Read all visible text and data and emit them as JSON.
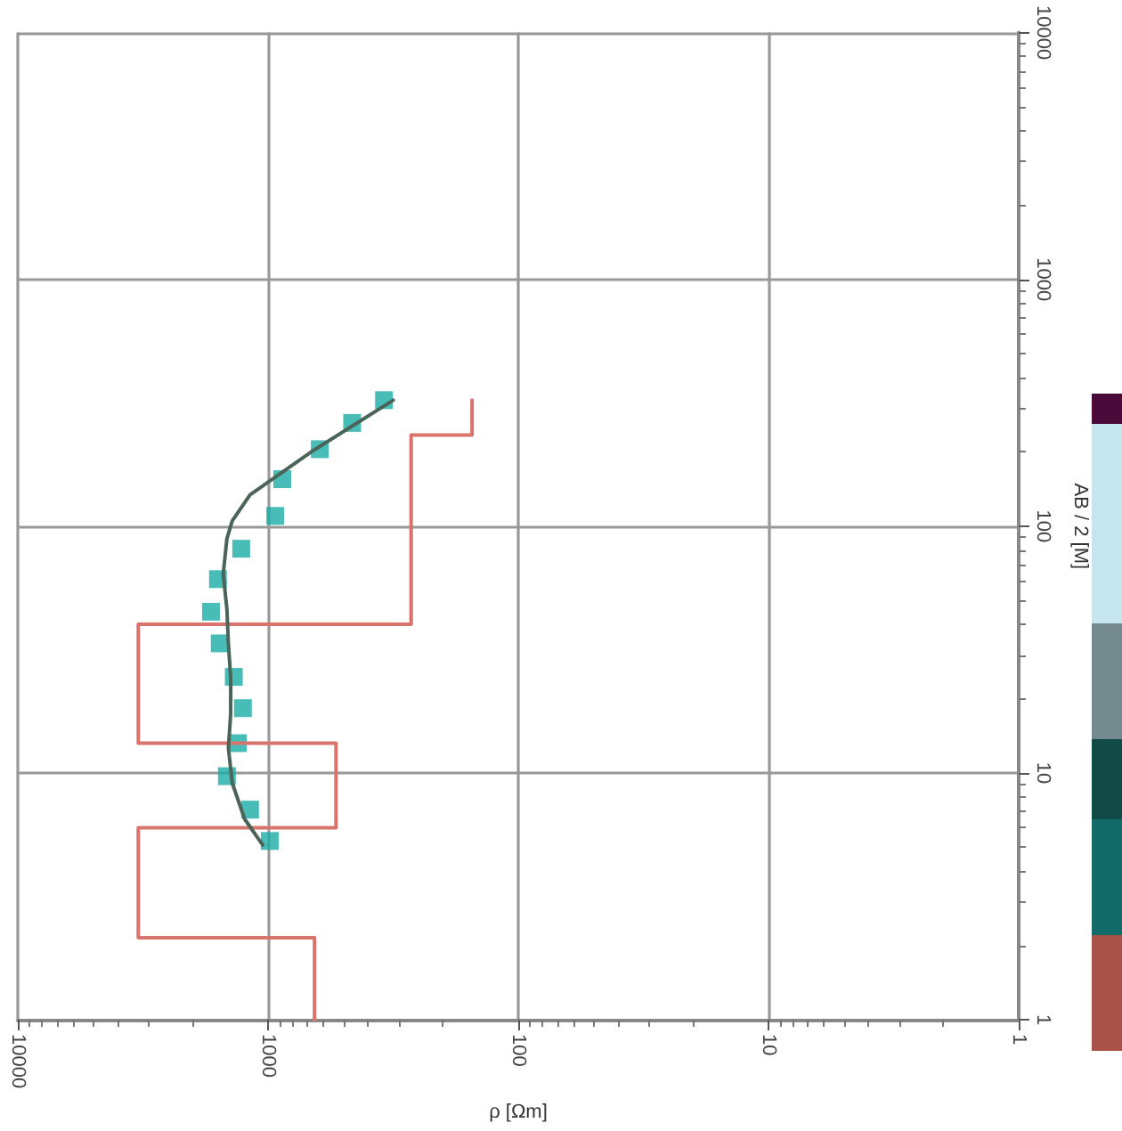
{
  "chart_data": {
    "type": "line",
    "xlabel": "ρ [Ωm]",
    "ylabel": "AB / 2 [M]",
    "xlim": [
      10000,
      1
    ],
    "xticks": [
      10000,
      1000,
      100,
      10,
      1
    ],
    "ylim": [
      1,
      10000
    ],
    "yticks": [
      1,
      10,
      100,
      1000,
      10000
    ],
    "log": "xy",
    "grid": true,
    "series": [
      {
        "color": "#d9746c",
        "marker": "none",
        "line_style": "solid",
        "x": [
          153,
          153,
          268,
          268,
          3300,
          3300,
          535,
          535,
          3300,
          3300,
          652,
          652
        ],
        "values": [
          324,
          234,
          234,
          40,
          40,
          13.2,
          13.2,
          6,
          6,
          2.15,
          2.15,
          1
        ]
      },
      {
        "color": "#4a6458",
        "marker": "none",
        "line_style": "solid",
        "x": [
          316,
          662,
          1180,
          1390,
          1460,
          1510,
          1460,
          1440,
          1410,
          1410,
          1440,
          1390,
          1240,
          1050
        ],
        "values": [
          324,
          202,
          134,
          105,
          89,
          64,
          46,
          33.5,
          24.1,
          17.4,
          12.6,
          9.1,
          6.5,
          5.1
        ]
      },
      {
        "type": "scatter",
        "color": "#1aaca6",
        "marker": "square",
        "x": [
          344,
          461,
          621,
          877,
          936,
          1280,
          1585,
          1690,
          1560,
          1370,
          1260,
          1320,
          1460,
          1180,
          984
        ],
        "values": [
          324,
          262,
          205,
          155,
          110,
          81,
          61,
          45,
          33.5,
          24.5,
          18.3,
          13.2,
          9.7,
          7.1,
          5.3
        ]
      }
    ]
  }
}
